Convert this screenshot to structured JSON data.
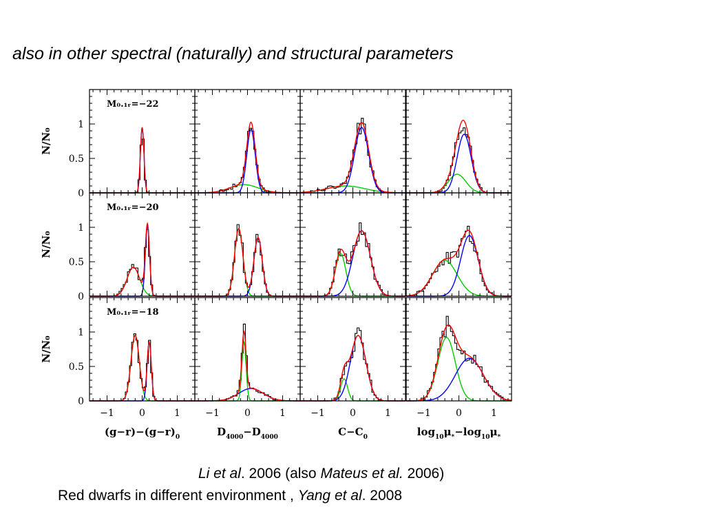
{
  "slide": {
    "title": "also  in other spectral (naturally) and structural parameters",
    "citation1": {
      "a": "Li et al",
      "b": ". 2006 (also ",
      "c": "Mateus et al.",
      "d": " 2006)"
    },
    "citation2": {
      "a": "Red dwarfs in different environment , ",
      "b": "Yang et al",
      "c": ". 2008"
    }
  },
  "colors": {
    "histogram": "#000000",
    "total_fit": "#ff0000",
    "red_component": "#0000ff",
    "blue_component": "#00cc00"
  },
  "chart_data": {
    "type": "line",
    "layout": "3 rows x 4 columns of histogram panels",
    "ylabel": "N/N₀",
    "ylim": [
      0,
      1.5
    ],
    "xlim": [
      -1.5,
      1.5
    ],
    "xticks": [
      "−1",
      "0",
      "1"
    ],
    "yticks": [
      "0",
      "0.5",
      "1"
    ],
    "columns": [
      {
        "xlabel_html": "(g−r)−(g−r)<tspan baseline-shift='sub' font-size='9'>0</tspan>"
      },
      {
        "xlabel_html": "D<tspan baseline-shift='sub' font-size='9'>4000</tspan>−D<tspan baseline-shift='sub' font-size='9'>4000</tspan>"
      },
      {
        "xlabel_html": "C−C<tspan baseline-shift='sub' font-size='9'>0</tspan>"
      },
      {
        "xlabel_html": "log<tspan baseline-shift='sub' font-size='9'>10</tspan>μ<tspan baseline-shift='sub' font-size='9'>*</tspan>−log<tspan baseline-shift='sub' font-size='9'>10</tspan>μ<tspan baseline-shift='sub' font-size='9'>*</tspan>"
      }
    ],
    "rows": [
      {
        "label": "M₀.₁ᵣ=−22"
      },
      {
        "label": "M₀.₁ᵣ=−20"
      },
      {
        "label": "M₀.₁ᵣ=−18"
      }
    ],
    "panels": [
      [
        {
          "blue": {
            "A": 0.95,
            "mu": 0.0,
            "sigma": 0.05
          },
          "green": {
            "A": 0.0,
            "mu": -0.15,
            "sigma": 0.12
          }
        },
        {
          "blue": {
            "A": 0.92,
            "mu": 0.1,
            "sigma": 0.12
          },
          "green": {
            "A": 0.12,
            "mu": -0.1,
            "sigma": 0.4
          }
        },
        {
          "blue": {
            "A": 0.95,
            "mu": 0.25,
            "sigma": 0.2
          },
          "green": {
            "A": 0.1,
            "mu": -0.2,
            "sigma": 0.55
          }
        },
        {
          "blue": {
            "A": 0.85,
            "mu": 0.15,
            "sigma": 0.2
          },
          "green": {
            "A": 0.27,
            "mu": -0.05,
            "sigma": 0.25
          }
        }
      ],
      [
        {
          "blue": {
            "A": 1.02,
            "mu": 0.15,
            "sigma": 0.06
          },
          "green": {
            "A": 0.42,
            "mu": -0.25,
            "sigma": 0.18
          }
        },
        {
          "blue": {
            "A": 0.85,
            "mu": 0.3,
            "sigma": 0.12
          },
          "green": {
            "A": 0.98,
            "mu": -0.25,
            "sigma": 0.12
          }
        },
        {
          "blue": {
            "A": 0.95,
            "mu": 0.25,
            "sigma": 0.25
          },
          "green": {
            "A": 0.62,
            "mu": -0.35,
            "sigma": 0.15
          }
        },
        {
          "blue": {
            "A": 0.88,
            "mu": 0.3,
            "sigma": 0.25
          },
          "green": {
            "A": 0.52,
            "mu": -0.4,
            "sigma": 0.35
          }
        }
      ],
      [
        {
          "blue": {
            "A": 0.85,
            "mu": 0.2,
            "sigma": 0.06
          },
          "green": {
            "A": 0.95,
            "mu": -0.2,
            "sigma": 0.12
          }
        },
        {
          "blue": {
            "A": 0.18,
            "mu": 0.1,
            "sigma": 0.35
          },
          "green": {
            "A": 0.85,
            "mu": -0.1,
            "sigma": 0.06
          }
        },
        {
          "blue": {
            "A": 0.95,
            "mu": 0.15,
            "sigma": 0.22
          },
          "green": {
            "A": 0.32,
            "mu": -0.25,
            "sigma": 0.1
          }
        },
        {
          "blue": {
            "A": 0.62,
            "mu": 0.3,
            "sigma": 0.4
          },
          "green": {
            "A": 0.92,
            "mu": -0.35,
            "sigma": 0.25
          }
        }
      ]
    ]
  }
}
